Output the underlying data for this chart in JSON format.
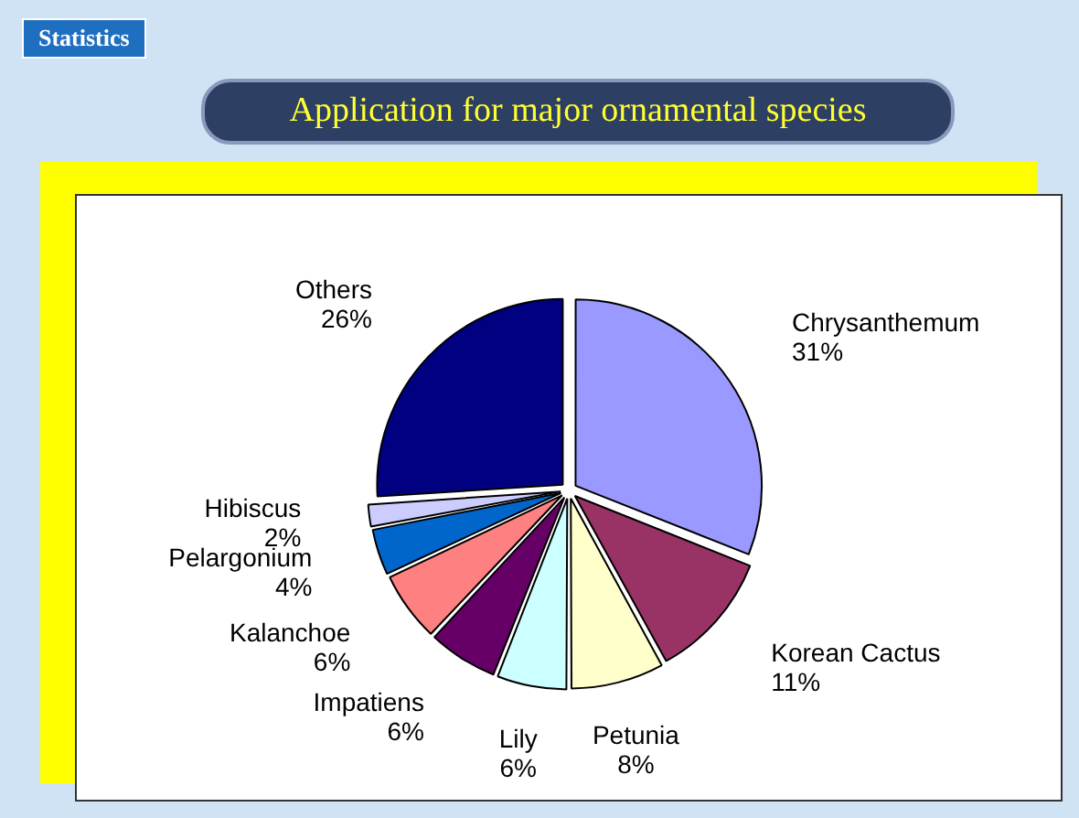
{
  "chart_data": {
    "type": "pie",
    "title": "Application for major ornamental species",
    "annotations": [
      "Statistics"
    ],
    "categories": [
      "Chrysanthemum",
      "Korean Cactus",
      "Petunia",
      "Lily",
      "Impatiens",
      "Kalanchoe",
      "Pelargonium",
      "Hibiscus",
      "Others"
    ],
    "values": [
      31,
      11,
      8,
      6,
      6,
      6,
      4,
      2,
      26
    ],
    "value_labels": [
      "31%",
      "11%",
      "8%",
      "6%",
      "6%",
      "6%",
      "4%",
      "2%",
      "26%"
    ],
    "colors": [
      "#9999ff",
      "#993366",
      "#ffffcc",
      "#ccffff",
      "#660066",
      "#ff8080",
      "#0066cc",
      "#ccccff",
      "#000080"
    ],
    "legend": false
  }
}
